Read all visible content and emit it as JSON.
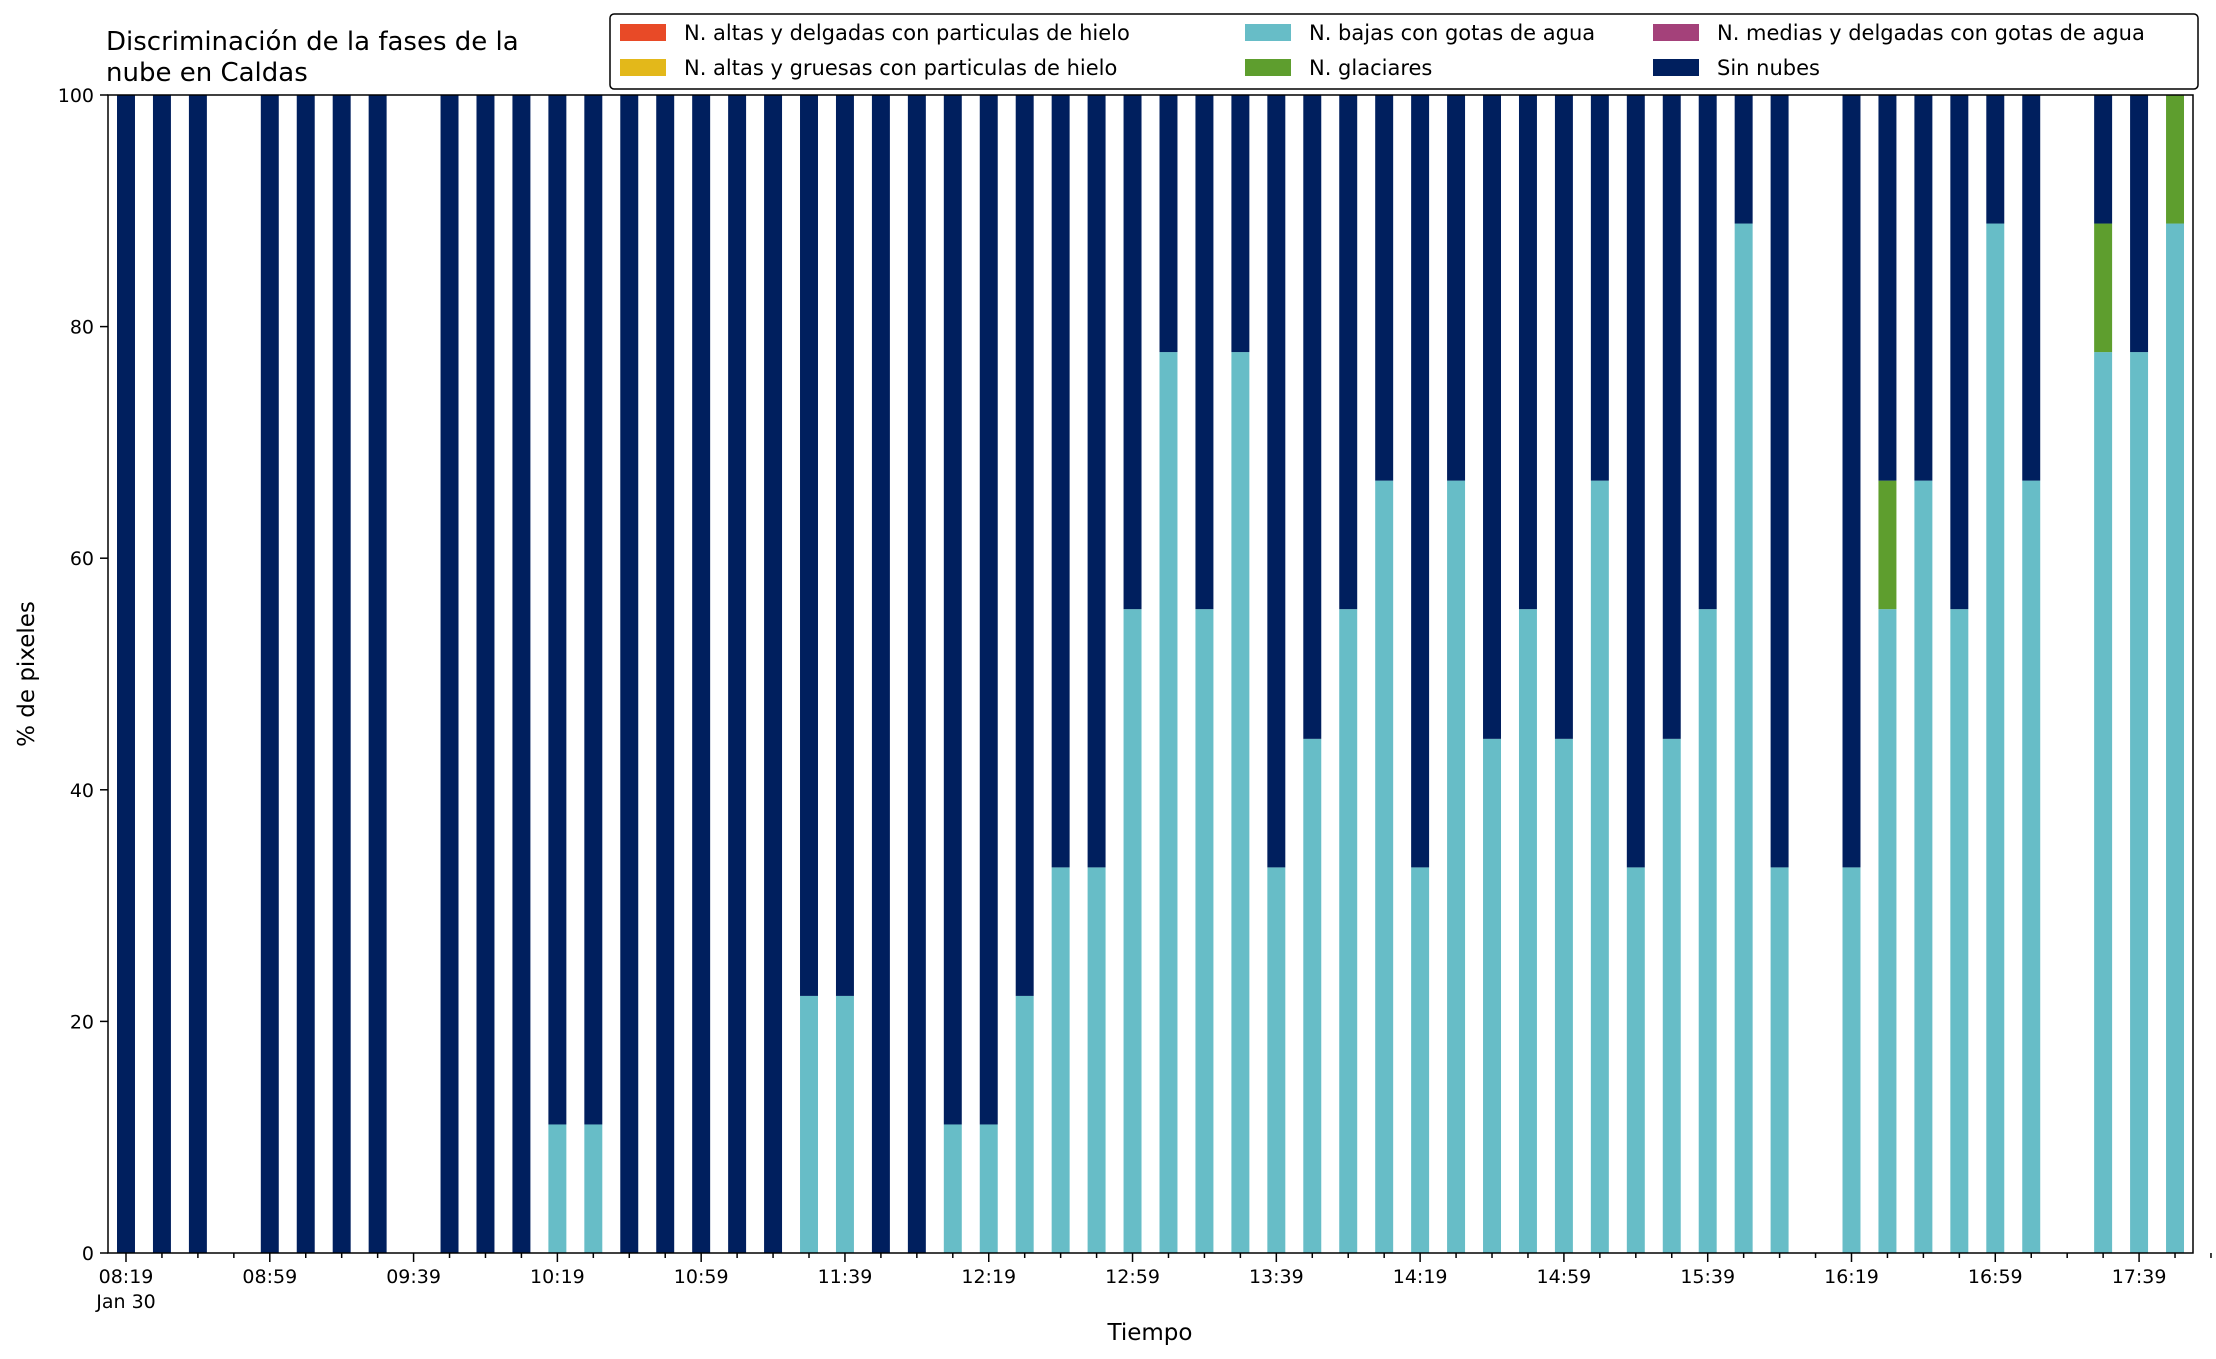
{
  "chart_data": {
    "type": "bar",
    "stacked": true,
    "title": "Discriminación de la fases de la\nnube en Caldas",
    "xlabel": "Tiempo",
    "ylabel": "% de pixeles",
    "ylim": [
      0,
      100
    ],
    "yticks": [
      0,
      20,
      40,
      60,
      80,
      100
    ],
    "legend_position": "top-right",
    "grid": false,
    "x_interval_minutes": 10,
    "x_start": "08:19",
    "x_tick_labels": [
      "08:19",
      "08:59",
      "09:39",
      "10:19",
      "10:59",
      "11:39",
      "12:19",
      "12:59",
      "13:39",
      "14:19",
      "14:59",
      "15:39",
      "16:19",
      "16:59",
      "17:39"
    ],
    "x_date_label": "Jan 30",
    "legend": [
      {
        "name": "N. altas y delgadas con particulas de hielo",
        "color": "#e84a27"
      },
      {
        "name": "N. altas y gruesas con particulas de hielo",
        "color": "#e3b81a"
      },
      {
        "name": "N. bajas con gotas de agua",
        "color": "#67bdc7"
      },
      {
        "name": "N. glaciares",
        "color": "#5e9e2e"
      },
      {
        "name": "N. medias y delgadas con gotas de agua",
        "color": "#a4417a"
      },
      {
        "name": "Sin nubes",
        "color": "#001f5e"
      }
    ],
    "x": [
      "08:19",
      "08:29",
      "08:39",
      "08:49",
      "08:59",
      "09:09",
      "09:19",
      "09:29",
      "09:39",
      "09:49",
      "09:59",
      "10:09",
      "10:19",
      "10:29",
      "10:39",
      "10:49",
      "10:59",
      "11:09",
      "11:19",
      "11:29",
      "11:39",
      "11:49",
      "11:59",
      "12:09",
      "12:19",
      "12:29",
      "12:39",
      "12:49",
      "12:59",
      "13:09",
      "13:19",
      "13:29",
      "13:39",
      "13:49",
      "13:59",
      "14:09",
      "14:19",
      "14:29",
      "14:39",
      "14:49",
      "14:59",
      "15:09",
      "15:19",
      "15:29",
      "15:39",
      "15:49",
      "15:59",
      "16:09",
      "16:19",
      "16:29",
      "16:39",
      "16:49",
      "16:59",
      "17:09",
      "17:19",
      "17:29",
      "17:39",
      "17:49"
    ],
    "series": [
      {
        "name": "N. bajas con gotas de agua",
        "values": [
          0,
          0,
          0,
          null,
          0,
          0,
          0,
          0,
          null,
          0,
          0,
          0,
          11.1,
          11.1,
          0,
          0,
          0,
          0,
          0,
          22.2,
          22.2,
          0,
          0,
          11.1,
          11.1,
          22.2,
          33.3,
          33.3,
          55.6,
          77.8,
          55.6,
          77.8,
          33.3,
          44.4,
          55.6,
          66.7,
          33.3,
          66.7,
          44.4,
          55.6,
          44.4,
          66.7,
          33.3,
          44.4,
          55.6,
          88.9,
          33.3,
          null,
          33.3,
          55.6,
          66.7,
          55.6,
          88.9,
          66.7,
          null,
          77.8,
          77.8,
          88.9
        ]
      },
      {
        "name": "N. glaciares",
        "values": [
          0,
          0,
          0,
          null,
          0,
          0,
          0,
          0,
          null,
          0,
          0,
          0,
          0,
          0,
          0,
          0,
          0,
          0,
          0,
          0,
          0,
          0,
          0,
          0,
          0,
          0,
          0,
          0,
          0,
          0,
          0,
          0,
          0,
          0,
          0,
          0,
          0,
          0,
          0,
          0,
          0,
          0,
          0,
          0,
          0,
          0,
          0,
          null,
          0,
          11.1,
          0,
          0,
          0,
          0,
          null,
          11.1,
          0,
          11.1
        ]
      },
      {
        "name": "Sin nubes",
        "values": [
          100,
          100,
          100,
          null,
          100,
          100,
          100,
          100,
          null,
          100,
          100,
          100,
          88.9,
          88.9,
          100,
          100,
          100,
          100,
          100,
          77.8,
          77.8,
          100,
          100,
          88.9,
          88.9,
          77.8,
          66.7,
          66.7,
          44.4,
          22.2,
          44.4,
          22.2,
          66.7,
          55.6,
          44.4,
          33.3,
          66.7,
          33.3,
          55.6,
          44.4,
          55.6,
          33.3,
          66.7,
          55.6,
          44.4,
          11.1,
          66.7,
          null,
          66.7,
          33.3,
          33.3,
          44.4,
          11.1,
          33.3,
          null,
          11.1,
          22.2,
          0
        ]
      }
    ]
  }
}
